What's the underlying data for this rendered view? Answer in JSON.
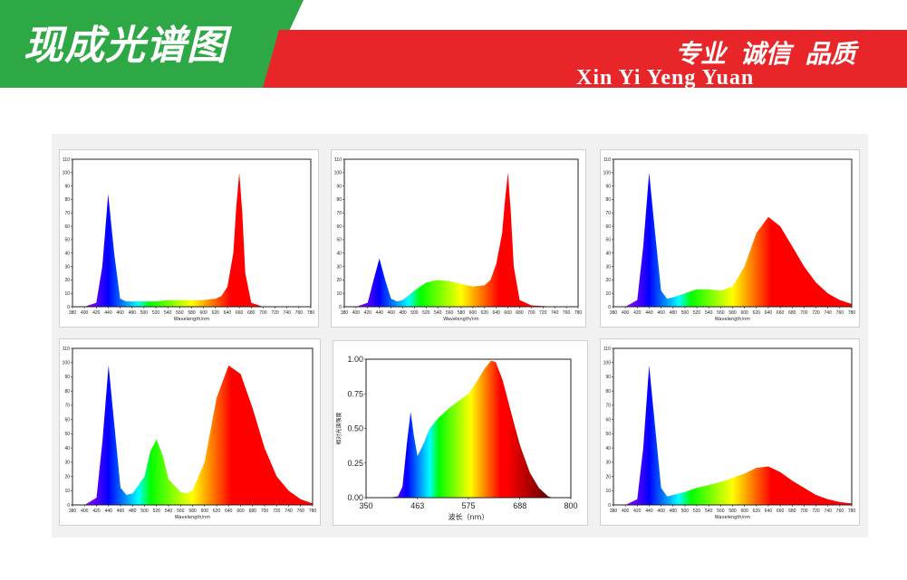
{
  "header": {
    "title": "现成光谱图",
    "slogan_cn": "专业 诚信 品质",
    "slogan_en": "Xin Yi Yeng Yuan",
    "colors": {
      "green": "#2ea745",
      "red": "#e8262a"
    }
  },
  "chart_data": [
    {
      "type": "area",
      "xlabel": "Wavelength/nm",
      "ylabel": "",
      "xlim": [
        380,
        780
      ],
      "ylim": [
        0,
        110
      ],
      "xticks": [
        380,
        400,
        420,
        440,
        460,
        480,
        500,
        520,
        540,
        560,
        580,
        600,
        620,
        640,
        660,
        680,
        700,
        720,
        740,
        760,
        780
      ],
      "yticks": [
        0,
        10,
        20,
        30,
        40,
        50,
        60,
        70,
        80,
        90,
        100,
        110
      ],
      "x": [
        380,
        400,
        420,
        430,
        440,
        450,
        460,
        470,
        480,
        500,
        520,
        540,
        560,
        580,
        600,
        620,
        630,
        640,
        650,
        655,
        660,
        665,
        670,
        680,
        700,
        740,
        780
      ],
      "y": [
        0,
        0,
        3,
        30,
        84,
        40,
        6,
        4,
        4,
        4,
        4,
        5,
        5,
        5,
        5,
        6,
        8,
        15,
        40,
        75,
        100,
        70,
        25,
        3,
        0,
        0,
        0
      ]
    },
    {
      "type": "area",
      "xlabel": "Wavelength/nm",
      "ylabel": "",
      "xlim": [
        380,
        780
      ],
      "ylim": [
        0,
        110
      ],
      "xticks": [
        380,
        400,
        420,
        440,
        460,
        480,
        500,
        520,
        540,
        560,
        580,
        600,
        620,
        640,
        660,
        680,
        700,
        720,
        740,
        760,
        780
      ],
      "yticks": [
        0,
        10,
        20,
        30,
        40,
        50,
        60,
        70,
        80,
        90,
        100,
        110
      ],
      "x": [
        380,
        400,
        420,
        430,
        440,
        450,
        460,
        470,
        480,
        500,
        520,
        540,
        560,
        580,
        600,
        620,
        630,
        640,
        650,
        655,
        660,
        665,
        670,
        680,
        700,
        740,
        780
      ],
      "y": [
        0,
        0,
        3,
        20,
        36,
        20,
        6,
        4,
        5,
        12,
        18,
        20,
        19,
        17,
        15,
        16,
        20,
        32,
        55,
        80,
        100,
        70,
        30,
        5,
        1,
        0,
        0
      ]
    },
    {
      "type": "area",
      "xlabel": "Wavelength/nm",
      "ylabel": "",
      "xlim": [
        380,
        780
      ],
      "ylim": [
        0,
        110
      ],
      "xticks": [
        380,
        400,
        420,
        440,
        460,
        480,
        500,
        520,
        540,
        560,
        580,
        600,
        620,
        640,
        660,
        680,
        700,
        720,
        740,
        760,
        780
      ],
      "yticks": [
        0,
        10,
        20,
        30,
        40,
        50,
        60,
        70,
        80,
        90,
        100,
        110
      ],
      "x": [
        380,
        400,
        420,
        430,
        440,
        450,
        460,
        470,
        480,
        500,
        520,
        540,
        560,
        580,
        600,
        620,
        640,
        660,
        680,
        700,
        720,
        740,
        760,
        780
      ],
      "y": [
        0,
        0,
        5,
        45,
        100,
        55,
        12,
        6,
        7,
        10,
        13,
        13,
        12,
        15,
        30,
        55,
        67,
        60,
        45,
        30,
        18,
        10,
        5,
        2
      ]
    },
    {
      "type": "area",
      "xlabel": "Wavelength/nm",
      "ylabel": "",
      "xlim": [
        380,
        780
      ],
      "ylim": [
        0,
        110
      ],
      "xticks": [
        380,
        400,
        420,
        440,
        460,
        480,
        500,
        520,
        540,
        560,
        580,
        600,
        620,
        640,
        660,
        680,
        700,
        720,
        740,
        760,
        780
      ],
      "yticks": [
        0,
        10,
        20,
        30,
        40,
        50,
        60,
        70,
        80,
        90,
        100,
        110
      ],
      "x": [
        380,
        400,
        420,
        430,
        440,
        450,
        460,
        470,
        480,
        500,
        510,
        520,
        530,
        540,
        560,
        570,
        580,
        600,
        620,
        640,
        660,
        680,
        700,
        720,
        740,
        760,
        780
      ],
      "y": [
        0,
        0,
        5,
        45,
        98,
        55,
        12,
        7,
        8,
        20,
        38,
        46,
        35,
        18,
        9,
        8,
        10,
        30,
        75,
        98,
        92,
        68,
        40,
        20,
        10,
        4,
        1
      ]
    },
    {
      "type": "area",
      "xlabel": "波长（nm）",
      "ylabel": "相对光谱强度",
      "xlim": [
        350,
        800
      ],
      "ylim": [
        0,
        1.0
      ],
      "xticks": [
        350,
        463,
        575,
        688,
        800
      ],
      "yticks": [
        0.0,
        0.25,
        0.5,
        0.75,
        1.0
      ],
      "x": [
        350,
        400,
        420,
        430,
        440,
        448,
        455,
        463,
        475,
        490,
        510,
        530,
        550,
        575,
        590,
        610,
        625,
        635,
        650,
        670,
        688,
        710,
        730,
        750,
        760,
        800
      ],
      "y": [
        0,
        0,
        0.01,
        0.08,
        0.4,
        0.62,
        0.45,
        0.3,
        0.38,
        0.5,
        0.58,
        0.64,
        0.69,
        0.75,
        0.82,
        0.93,
        0.99,
        0.98,
        0.85,
        0.6,
        0.38,
        0.18,
        0.07,
        0.01,
        0,
        0
      ]
    },
    {
      "type": "area",
      "xlabel": "Wavelength/nm",
      "ylabel": "",
      "xlim": [
        380,
        780
      ],
      "ylim": [
        0,
        110
      ],
      "xticks": [
        380,
        400,
        420,
        440,
        460,
        480,
        500,
        520,
        540,
        560,
        580,
        600,
        620,
        640,
        660,
        680,
        700,
        720,
        740,
        760,
        780
      ],
      "yticks": [
        0,
        10,
        20,
        30,
        40,
        50,
        60,
        70,
        80,
        90,
        100,
        110
      ],
      "x": [
        380,
        400,
        420,
        430,
        440,
        450,
        460,
        470,
        480,
        500,
        520,
        540,
        560,
        580,
        600,
        620,
        640,
        660,
        680,
        700,
        720,
        740,
        760,
        780
      ],
      "y": [
        0,
        0,
        4,
        40,
        98,
        55,
        12,
        6,
        7,
        9,
        12,
        14,
        16,
        19,
        22,
        26,
        27,
        23,
        17,
        12,
        7,
        4,
        2,
        1
      ]
    }
  ]
}
